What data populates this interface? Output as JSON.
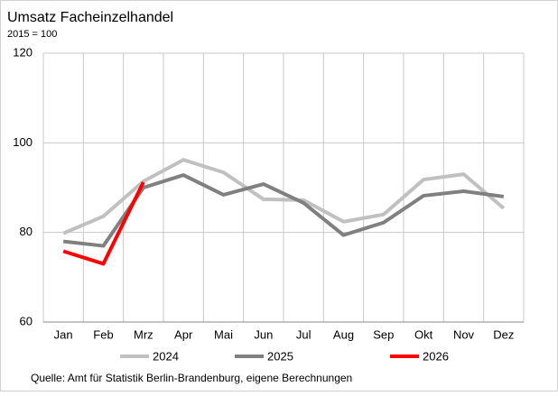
{
  "chart_data": {
    "type": "line",
    "title": "Umsatz Facheinzelhandel",
    "subtitle": "2015 = 100",
    "categories": [
      "Jan",
      "Feb",
      "Mrz",
      "Apr",
      "Mai",
      "Jun",
      "Jul",
      "Aug",
      "Sep",
      "Okt",
      "Nov",
      "Dez"
    ],
    "series": [
      {
        "name": "2024",
        "color": "#c0c0c0",
        "values": [
          79.8,
          83.6,
          91.4,
          96.2,
          93.4,
          87.4,
          87.2,
          82.4,
          84.0,
          91.8,
          93.0,
          85.4
        ]
      },
      {
        "name": "2025",
        "color": "#808080",
        "values": [
          78.0,
          77.0,
          90.0,
          92.8,
          88.4,
          90.8,
          86.6,
          79.4,
          82.2,
          88.2,
          89.2,
          88.0
        ]
      },
      {
        "name": "2026",
        "color": "#ff0000",
        "values": [
          75.8,
          73.0,
          91.2,
          null,
          null,
          null,
          null,
          null,
          null,
          null,
          null,
          null
        ]
      }
    ],
    "ylim": [
      60,
      120
    ],
    "yticks": [
      60,
      80,
      100,
      120
    ],
    "grid": true,
    "source": "Quelle: Amt für Statistik Berlin-Brandenburg,  eigene Berechnungen"
  }
}
